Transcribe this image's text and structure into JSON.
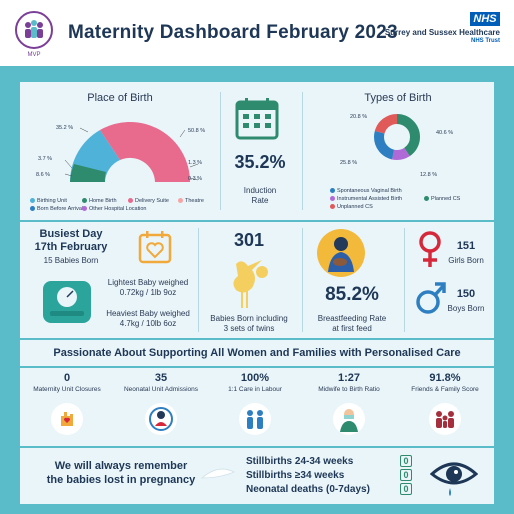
{
  "header": {
    "title": "Maternity Dashboard  February  2023",
    "logo_text": "SURREY & SUSSEX HEALTHCARE",
    "logo_sub": "MVP",
    "nhs": "NHS",
    "trust_name": "Surrey and Sussex Healthcare",
    "trust_sub": "NHS Trust"
  },
  "place_of_birth": {
    "title": "Place of Birth",
    "labels": [
      "35.2 %",
      "50.8 %",
      "3.7 %",
      "8.6 %",
      "1.3 %",
      "0.3 %"
    ],
    "legend": [
      "Birthing Unit",
      "Home Birth",
      "Delivery Suite",
      "Theatre",
      "Born Before Arrival",
      "Other Hospital Location"
    ]
  },
  "induction": {
    "value": "35.2%",
    "label1": "Induction",
    "label2": "Rate"
  },
  "types_of_birth": {
    "title": "Types of Birth",
    "labels": [
      "20.8 %",
      "40.6 %",
      "25.8 %",
      "12.8 %"
    ],
    "legend": [
      "Spontaneous Vaginal Birth",
      "Instrumental Assisted Birth",
      "Planned CS",
      "Unplanned CS"
    ]
  },
  "busiest": {
    "line1": "Busiest Day",
    "line2": "17th February",
    "line3": "15 Babies Born"
  },
  "weights": {
    "light_label": "Lightest Baby weighed",
    "light_value": "0.72kg / 1lb 9oz",
    "heavy_label": "Heaviest Baby weighed",
    "heavy_value": "4.7kg / 10lb 6oz"
  },
  "babies": {
    "value": "301",
    "label1": "Babies Born including",
    "label2": "3 sets of twins"
  },
  "breastfeeding": {
    "value": "85.2%",
    "label1": "Breastfeeding Rate",
    "label2": "at first feed"
  },
  "gender": {
    "girls_value": "151",
    "girls_label": "Girls Born",
    "boys_value": "150",
    "boys_label": "Boys Born"
  },
  "banner": "Passionate About Supporting All Women and Families with Personalised Care",
  "stats": [
    {
      "value": "0",
      "label": "Maternity Unit Closures"
    },
    {
      "value": "35",
      "label": "Neonatal Unit Admissions"
    },
    {
      "value": "100%",
      "label": "1:1 Care in Labour"
    },
    {
      "value": "1:27",
      "label": "Midwife to Birth Ratio"
    },
    {
      "value": "91.8%",
      "label": "Friends & Family Score"
    }
  ],
  "memorial": {
    "line1": "We will always remember",
    "line2": "the babies lost in pregnancy"
  },
  "stillbirths": [
    {
      "label": "Stillbirths 24-34 weeks",
      "value": "0"
    },
    {
      "label": "Stillbirths ≥34 weeks",
      "value": "0"
    },
    {
      "label": "Neonatal deaths (0-7days)",
      "value": "0"
    }
  ],
  "colors": {
    "teal": "#5bbcc9",
    "navy": "#1e3756",
    "pink": "#e86b8e",
    "green": "#2e8b6e",
    "blue": "#2d7fc1",
    "purple": "#b06ad8",
    "red": "#d6283a"
  }
}
